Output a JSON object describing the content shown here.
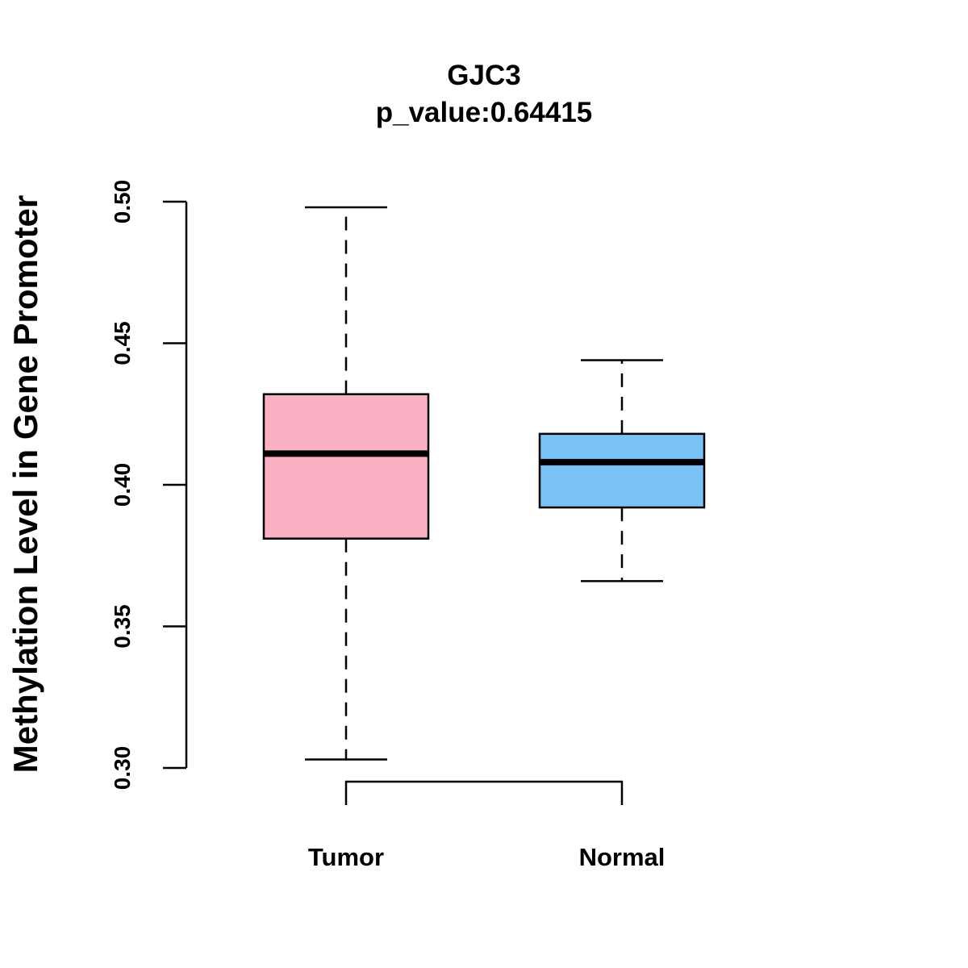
{
  "chart_data": {
    "type": "boxplot",
    "title": "GJC3",
    "subtitle": "p_value:0.64415",
    "xlabel": "",
    "ylabel": "Methylation Level in Gene Promoter",
    "ylim": [
      0.3,
      0.5
    ],
    "yticks": [
      0.3,
      0.35,
      0.4,
      0.45,
      0.5
    ],
    "ytick_labels": [
      "0.30",
      "0.35",
      "0.40",
      "0.45",
      "0.50"
    ],
    "groups": [
      {
        "name": "Tumor",
        "color": "#FBB1C3",
        "whisker_low": 0.303,
        "q1": 0.381,
        "median": 0.411,
        "q3": 0.432,
        "whisker_high": 0.498
      },
      {
        "name": "Normal",
        "color": "#79C2F8",
        "whisker_low": 0.366,
        "q1": 0.392,
        "median": 0.408,
        "q3": 0.418,
        "whisker_high": 0.444
      }
    ],
    "comparison_bracket": {
      "from": "Tumor",
      "to": "Normal"
    }
  }
}
